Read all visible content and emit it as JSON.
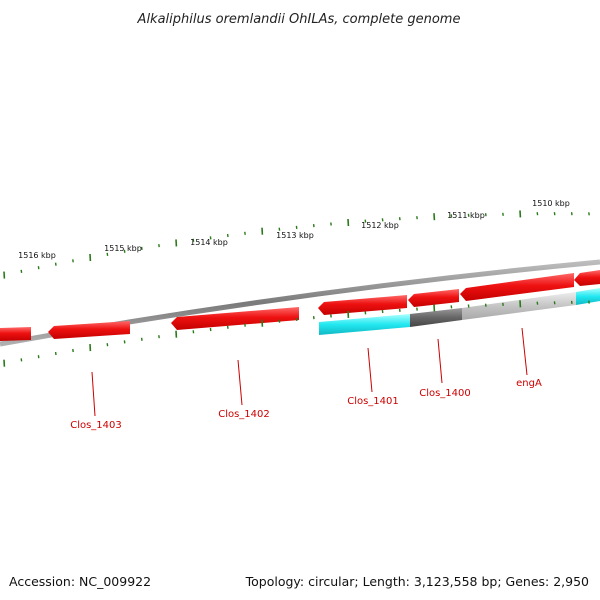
{
  "title": "Alkaliphilus oremlandii OhILAs, complete genome",
  "footer": {
    "accession": "Accession: NC_009922",
    "summary": "Topology: circular; Length: 3,123,558 bp; Genes: 2,950"
  },
  "colors": {
    "backbone": "#8a8a8a",
    "forward_gene": "#ee1111",
    "cog_a": "#22e8f0",
    "cog_b": "#666666",
    "cog_c": "#c4c4c4",
    "ticks": "#2a7a1a",
    "label": "#cc0000"
  },
  "scale_labels": [
    {
      "kbp": 1516,
      "text": "1516 kbp"
    },
    {
      "kbp": 1515,
      "text": "1515 kbp"
    },
    {
      "kbp": 1514,
      "text": "1514 kbp"
    },
    {
      "kbp": 1513,
      "text": "1513 kbp"
    },
    {
      "kbp": 1512,
      "text": "1512 kbp"
    },
    {
      "kbp": 1511,
      "text": "1511 kbp"
    },
    {
      "kbp": 1510,
      "text": "1510 kbp"
    }
  ],
  "genes": [
    {
      "name": "Clos_1403",
      "label": "Clos_1403"
    },
    {
      "name": "Clos_1402",
      "label": "Clos_1402"
    },
    {
      "name": "Clos_1401",
      "label": "Clos_1401"
    },
    {
      "name": "Clos_1400",
      "label": "Clos_1400"
    },
    {
      "name": "engA",
      "label": "engA"
    }
  ]
}
